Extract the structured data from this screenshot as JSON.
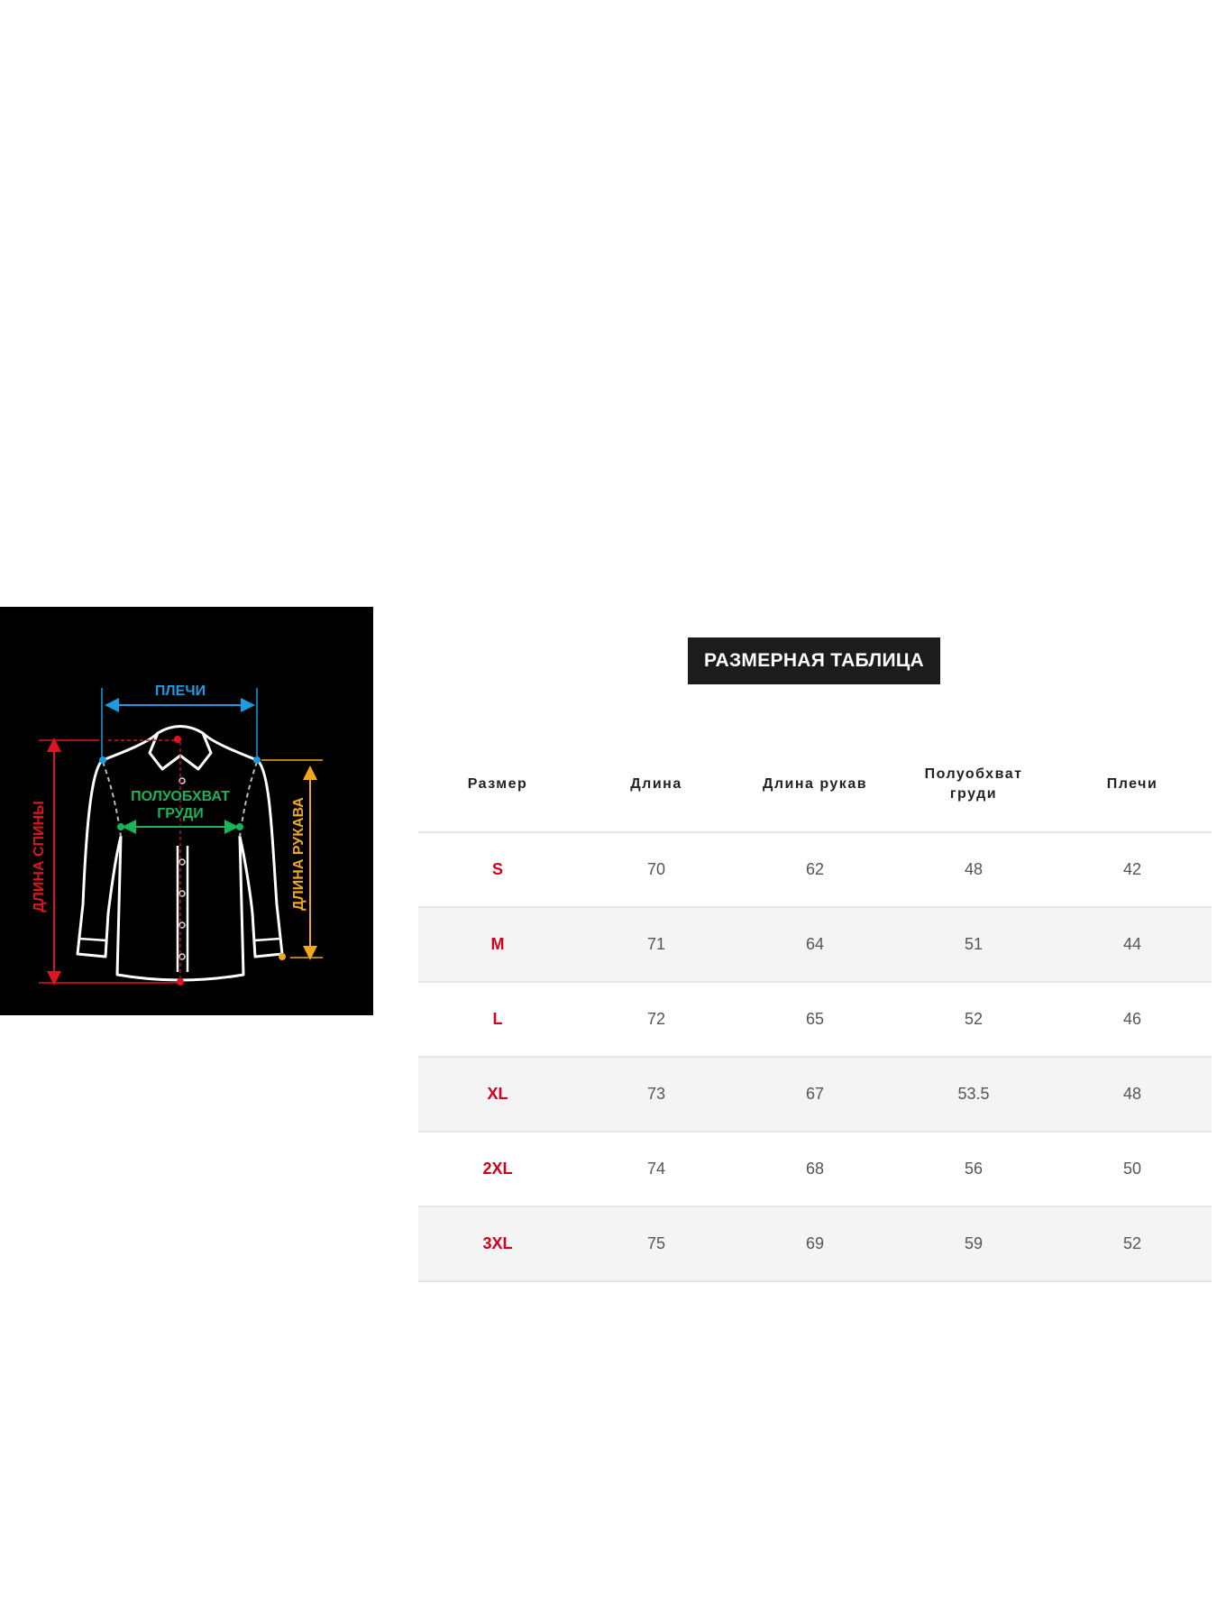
{
  "diagram": {
    "labels": {
      "shoulders": "ПЛЕЧИ",
      "chest_line1": "ПОЛУОБХВАТ",
      "chest_line2": "ГРУДИ",
      "back_length": "ДЛИНА СПИНЫ",
      "sleeve_length": "ДЛИНА РУКАВА"
    },
    "colors": {
      "shoulders": "#1e9be0",
      "chest": "#19b35a",
      "back_length": "#e0141e",
      "sleeve_length": "#f0a81e",
      "outline": "#ffffff",
      "background": "#000000"
    }
  },
  "title": "РАЗМЕРНАЯ ТАБЛИЦА",
  "table": {
    "headers": [
      "Размер",
      "Длина",
      "Длина рукав",
      "Полуобхват груди",
      "Плечи"
    ],
    "rows": [
      [
        "S",
        "70",
        "62",
        "48",
        "42"
      ],
      [
        "M",
        "71",
        "64",
        "51",
        "44"
      ],
      [
        "L",
        "72",
        "65",
        "52",
        "46"
      ],
      [
        "XL",
        "73",
        "67",
        "53.5",
        "48"
      ],
      [
        "2XL",
        "74",
        "68",
        "56",
        "50"
      ],
      [
        "3XL",
        "75",
        "69",
        "59",
        "52"
      ]
    ]
  }
}
